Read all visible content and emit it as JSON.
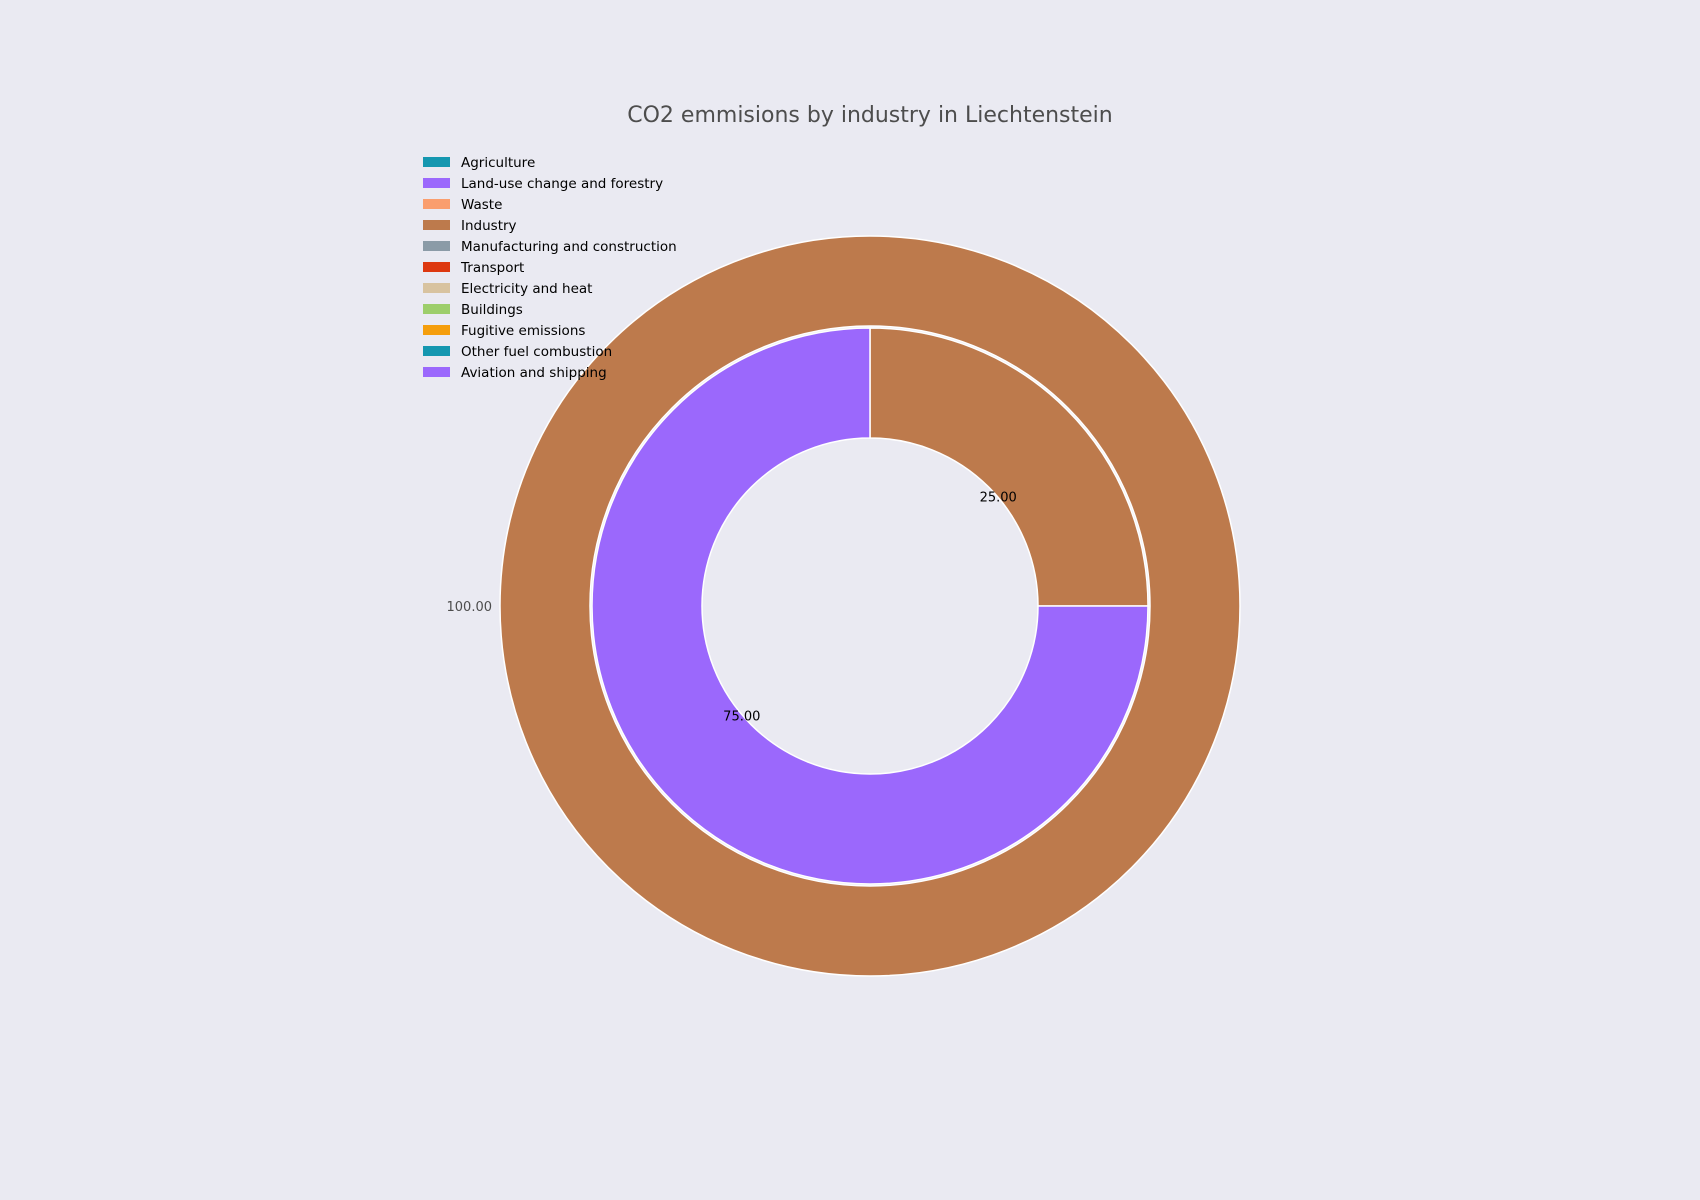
{
  "chart_data": {
    "type": "pie",
    "variant": "nested-donut",
    "title": "CO2 emmisions by industry in Liechtenstein",
    "legend": {
      "placement": "top-left",
      "entries": [
        {
          "label": "Agriculture",
          "color": "#1597b0"
        },
        {
          "label": "Land-use change and forestry",
          "color": "#9b68fc"
        },
        {
          "label": "Waste",
          "color": "#fa9e6e"
        },
        {
          "label": "Industry",
          "color": "#bd7a4c"
        },
        {
          "label": "Manufacturing and construction",
          "color": "#8b9ba7"
        },
        {
          "label": "Transport",
          "color": "#dd3810"
        },
        {
          "label": "Electricity and heat",
          "color": "#d8c3a0"
        },
        {
          "label": "Buildings",
          "color": "#9dce6b"
        },
        {
          "label": "Fugitive emissions",
          "color": "#f59e0d"
        },
        {
          "label": "Other fuel combustion",
          "color": "#1597b0"
        },
        {
          "label": "Aviation and shipping",
          "color": "#9b68fc"
        }
      ]
    },
    "rings": [
      {
        "name": "outer",
        "slices": [
          {
            "category": "Industry",
            "value": 100.0,
            "label": "100.00",
            "color": "#bd7a4c"
          }
        ]
      },
      {
        "name": "inner",
        "slices": [
          {
            "category": "Industry",
            "value": 25.0,
            "label": "25.00",
            "color": "#bd7a4c"
          },
          {
            "category": "Land-use change and forestry",
            "value": 75.0,
            "label": "75.00",
            "color": "#9b68fc"
          }
        ]
      }
    ],
    "start_angle_deg": 0,
    "direction": "counterclockwise",
    "edge_color": "#ffffff"
  }
}
